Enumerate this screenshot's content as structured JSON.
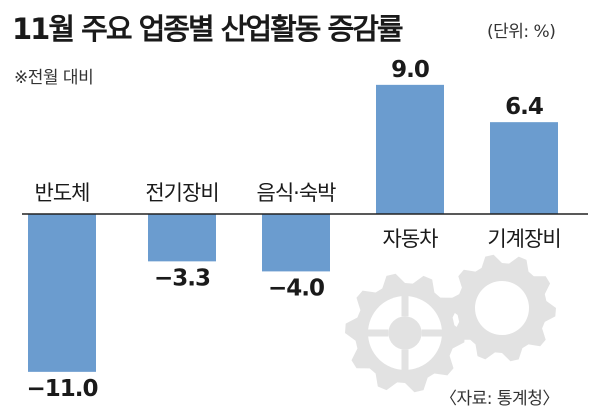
{
  "title": "11월 주요 업종별 산업활동 증감률",
  "unit": "(단위: %)",
  "note": "※전월 대비",
  "source": "〈자료: 통계청〉",
  "colors": {
    "bar": "#6b9ccf",
    "gear": "#e2e2e2",
    "axis": "#222222"
  },
  "icons": [
    "gear-icon",
    "gear-icon"
  ],
  "chart_data": {
    "type": "bar",
    "title": "11월 주요 업종별 산업활동 증감률",
    "xlabel": "",
    "ylabel": "",
    "categories": [
      "반도체",
      "전기장비",
      "음식·숙박",
      "자동차",
      "기계장비"
    ],
    "values": [
      -11.0,
      -3.3,
      -4.0,
      9.0,
      6.4
    ],
    "value_labels": [
      "−11.0",
      "−3.3",
      "−4.0",
      "9.0",
      "6.4"
    ],
    "ylim": [
      -11.0,
      9.0
    ],
    "grid": false,
    "legend": "none"
  }
}
